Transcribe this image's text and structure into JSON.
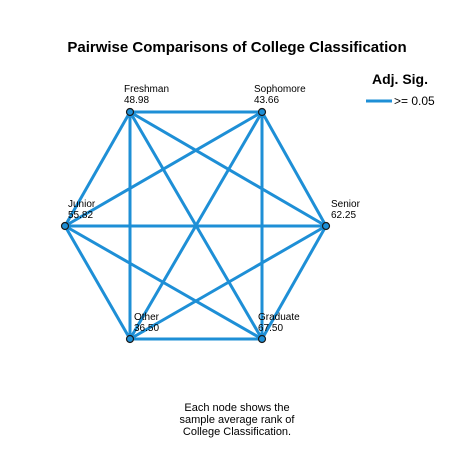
{
  "title": "Pairwise Comparisons of College Classification",
  "legend": {
    "title": "Adj. Sig.",
    "entry": ">= 0.05",
    "color": "#1e8fd6"
  },
  "colors": {
    "edge": "#1e8fd6",
    "node_fill": "#1e8fd6",
    "node_stroke": "#1a1a1a"
  },
  "nodes": [
    {
      "id": "freshman",
      "name": "Freshman",
      "value": "48.98"
    },
    {
      "id": "sophomore",
      "name": "Sophomore",
      "value": "43.66"
    },
    {
      "id": "senior",
      "name": "Senior",
      "value": "62.25"
    },
    {
      "id": "graduate",
      "name": "Graduate",
      "value": "67.50"
    },
    {
      "id": "other",
      "name": "Other",
      "value": "36.50"
    },
    {
      "id": "junior",
      "name": "Junior",
      "value": "55.82"
    }
  ],
  "edges": [
    [
      "freshman",
      "sophomore"
    ],
    [
      "freshman",
      "senior"
    ],
    [
      "freshman",
      "graduate"
    ],
    [
      "freshman",
      "other"
    ],
    [
      "freshman",
      "junior"
    ],
    [
      "sophomore",
      "senior"
    ],
    [
      "sophomore",
      "graduate"
    ],
    [
      "sophomore",
      "other"
    ],
    [
      "sophomore",
      "junior"
    ],
    [
      "senior",
      "graduate"
    ],
    [
      "senior",
      "other"
    ],
    [
      "senior",
      "junior"
    ],
    [
      "graduate",
      "other"
    ],
    [
      "graduate",
      "junior"
    ],
    [
      "other",
      "junior"
    ]
  ],
  "footnote": [
    "Each node shows the",
    "sample average rank of",
    "College Classification."
  ]
}
